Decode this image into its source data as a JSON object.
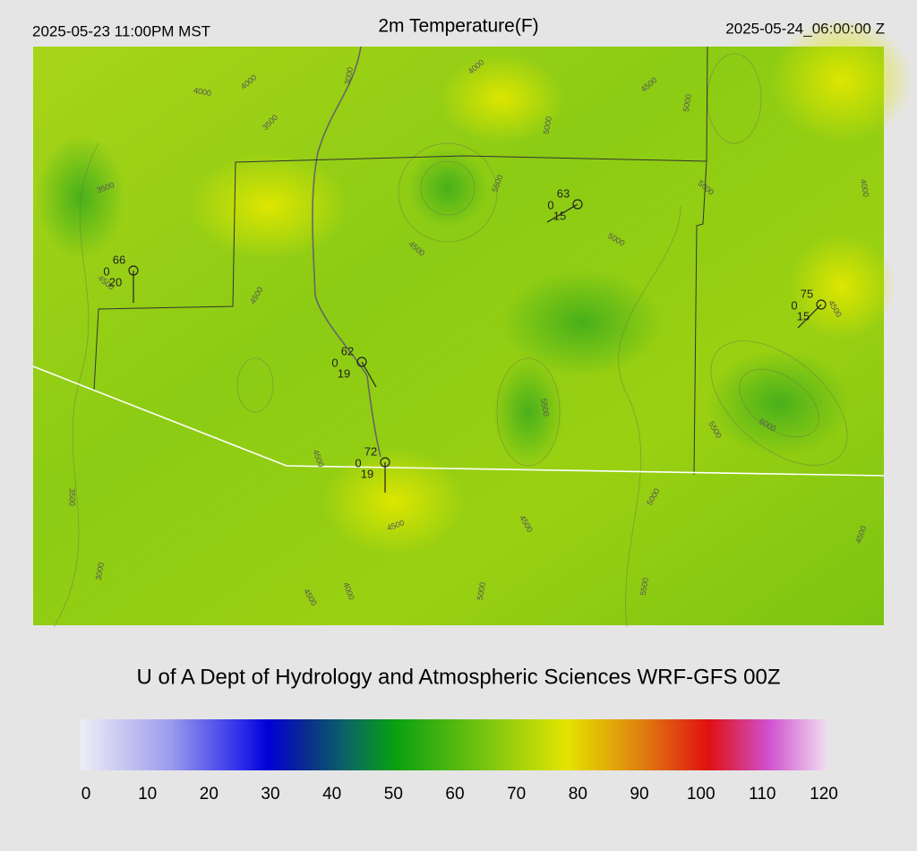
{
  "header": {
    "left": "2025-05-23 11:00PM MST",
    "title": "2m Temperature(F)",
    "right": "2025-05-24_06:00:00 Z"
  },
  "map": {
    "contour_labels": [
      "3000",
      "4000",
      "4000",
      "4000",
      "3500",
      "4500",
      "5000",
      "5000",
      "4000",
      "3500",
      "5500",
      "5000",
      "5000",
      "4500",
      "4500",
      "4500",
      "4500",
      "5500",
      "5500",
      "6000",
      "4500",
      "3500",
      "5000",
      "4500",
      "4500",
      "4500",
      "3000",
      "4000",
      "4500",
      "5000",
      "5500"
    ],
    "stations": [
      {
        "temp": "66",
        "pressure": "0",
        "dewpoint": "20"
      },
      {
        "temp": "62",
        "pressure": "0",
        "dewpoint": "19"
      },
      {
        "temp": "72",
        "pressure": "0",
        "dewpoint": "19"
      },
      {
        "temp": "63",
        "pressure": "0",
        "dewpoint": "15"
      },
      {
        "temp": "75",
        "pressure": "0",
        "dewpoint": "15"
      }
    ]
  },
  "footer": {
    "credit": "U of A Dept of Hydrology and Atmospheric Sciences WRF-GFS 00Z"
  },
  "colorbar": {
    "ticks": [
      0,
      10,
      20,
      30,
      40,
      50,
      60,
      70,
      80,
      90,
      100,
      110,
      120
    ]
  }
}
